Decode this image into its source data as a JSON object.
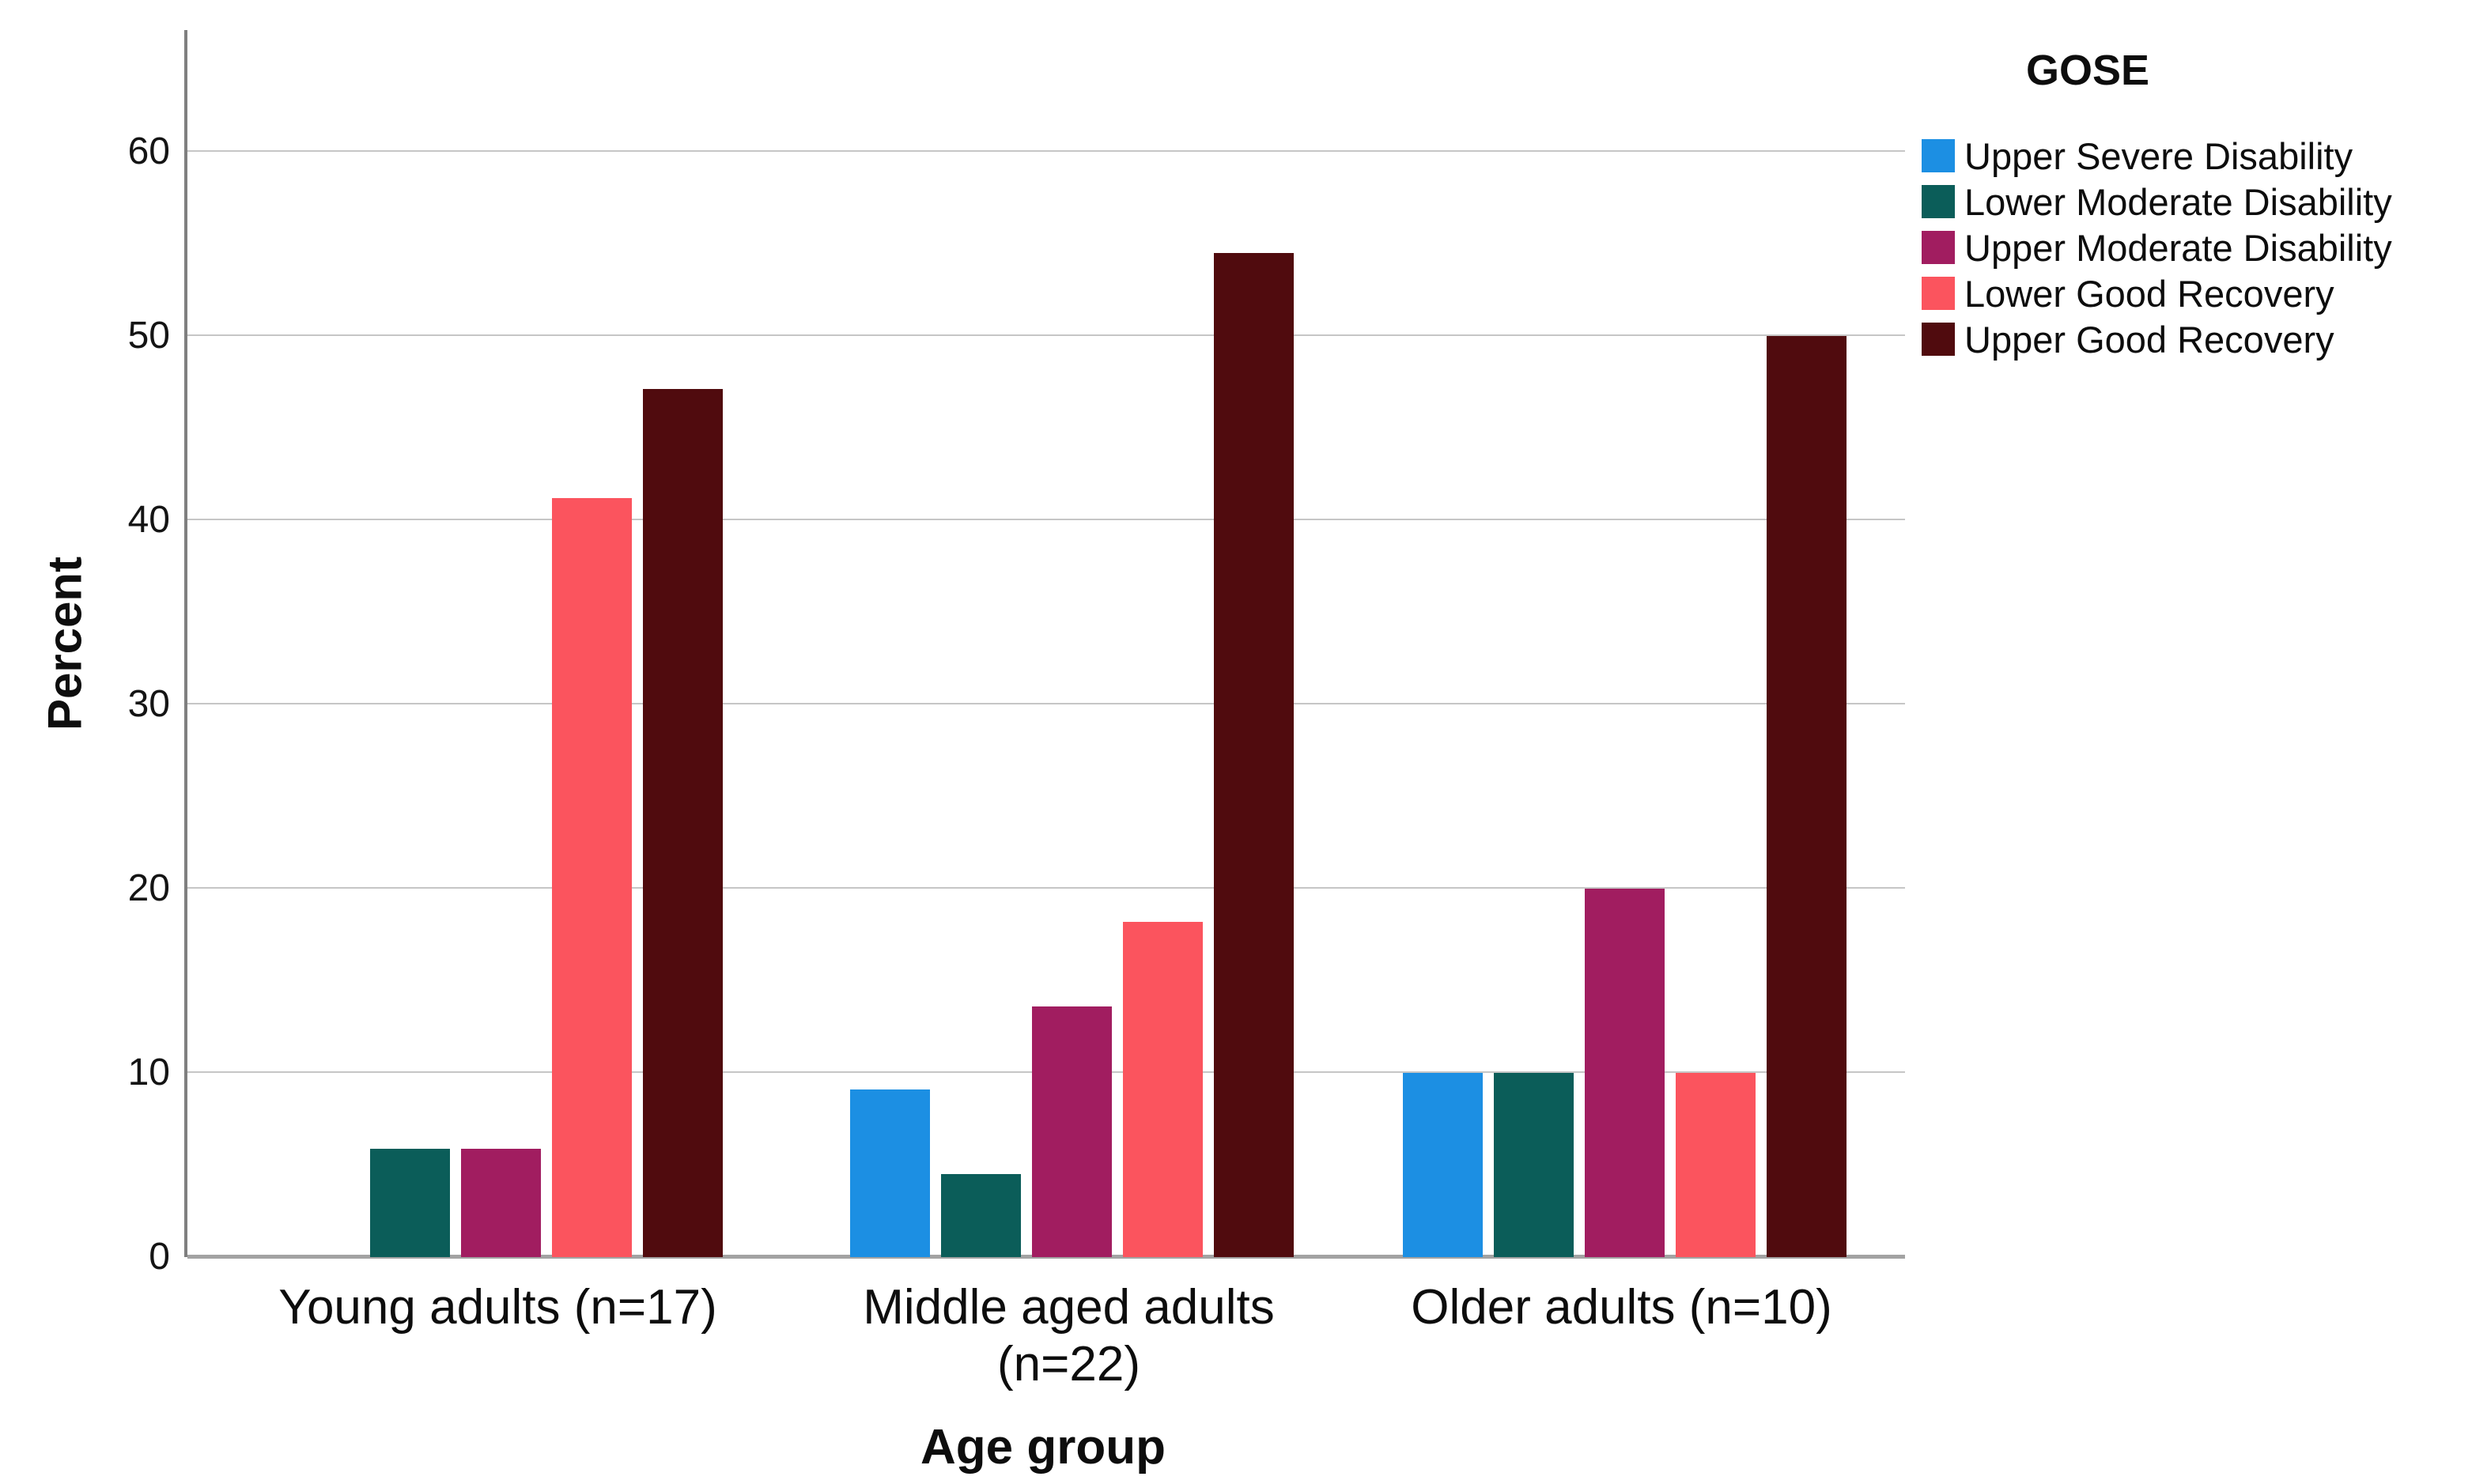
{
  "chart_data": {
    "type": "bar",
    "title": "",
    "xlabel": "Age group",
    "ylabel": "Percent",
    "legend_title": "GOSE",
    "legend_position": "right-top",
    "grid": true,
    "ylim": [
      0,
      66.6
    ],
    "y_ticks": [
      0,
      10,
      20,
      30,
      40,
      50,
      60
    ],
    "categories": [
      "Young adults (n=17)",
      "Middle aged adults (n=22)",
      "Older adults (n=10)"
    ],
    "category_label_lines": [
      [
        "Young adults (n=17)"
      ],
      [
        "Middle aged adults",
        "(n=22)"
      ],
      [
        "Older adults (n=10)"
      ]
    ],
    "series": [
      {
        "name": "Upper Severe Disability",
        "color": "#1c8fe3",
        "values": [
          0,
          9.1,
          10
        ]
      },
      {
        "name": "Lower Moderate Disability",
        "color": "#0b5d59",
        "values": [
          5.9,
          4.5,
          10
        ]
      },
      {
        "name": "Upper Moderate Disability",
        "color": "#a11d60",
        "values": [
          5.9,
          13.6,
          20
        ]
      },
      {
        "name": "Lower Good Recovery",
        "color": "#fb545e",
        "values": [
          41.2,
          18.2,
          10
        ]
      },
      {
        "name": "Upper Good Recovery",
        "color": "#500b0e",
        "values": [
          47.1,
          54.5,
          50
        ]
      }
    ]
  }
}
